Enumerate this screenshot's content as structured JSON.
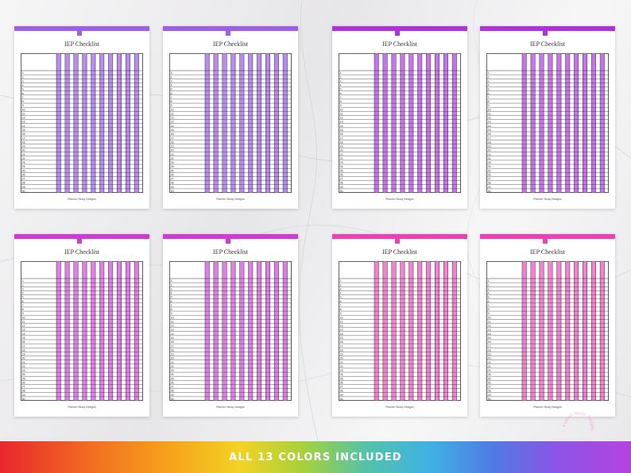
{
  "sheet_title": "IEP Checklist",
  "sheet_footer": "Planner Study Designs",
  "row_count": 30,
  "column_count": 10,
  "sheets": [
    {
      "id": "sheet-1",
      "accent": "#a05de8",
      "fill": "#b98af0"
    },
    {
      "id": "sheet-2",
      "accent": "#a05de8",
      "fill": "#b98af0"
    },
    {
      "id": "sheet-3",
      "accent": "#b030e0",
      "fill": "#c873ee"
    },
    {
      "id": "sheet-4",
      "accent": "#b030e0",
      "fill": "#c873ee"
    },
    {
      "id": "sheet-5",
      "accent": "#d23ad8",
      "fill": "#e07de6"
    },
    {
      "id": "sheet-6",
      "accent": "#d23ad8",
      "fill": "#e07de6"
    },
    {
      "id": "sheet-7",
      "accent": "#f03eb7",
      "fill": "#f57fd0"
    },
    {
      "id": "sheet-8",
      "accent": "#f03eb7",
      "fill": "#f57fd0"
    }
  ],
  "banner": {
    "text": "ALL 13 COLORS INCLUDED"
  },
  "watermark": {
    "text": "Planner Study Designs"
  }
}
